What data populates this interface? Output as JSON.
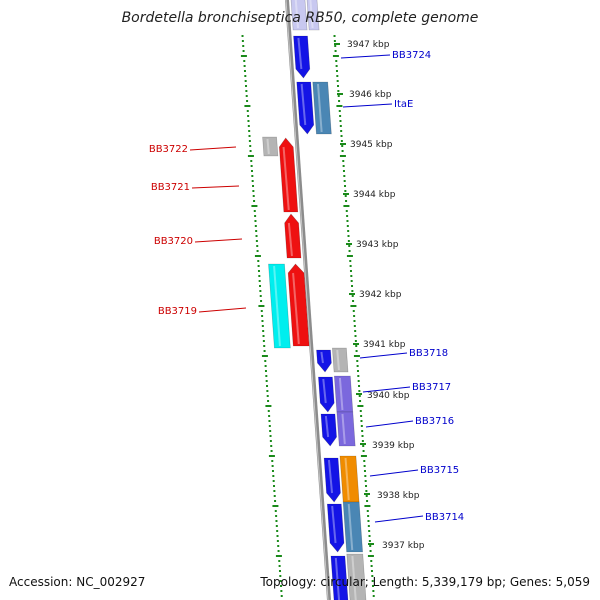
{
  "title": "Bordetella bronchiseptica RB50, complete genome",
  "footer": {
    "accession": "Accession: NC_002927",
    "stats": "Topology: circular; Length: 5,339,179 bp; Genes: 5,059"
  },
  "colors": {
    "backbone": "#8c8c8c",
    "tick": "#1a8a1a",
    "forward_label": "#0000cc",
    "reverse_label": "#cc0000",
    "blue": "#1414e6",
    "red": "#ee1111",
    "cyan": "#00eeee",
    "gray": "#b4b4b4",
    "steel": "#4a86b4",
    "violet": "#7b68dd",
    "orange": "#f08c00",
    "lavender": "#c8c8f0"
  },
  "kbp_labels": [
    {
      "text": "3947 kbp"
    },
    {
      "text": "3946 kbp"
    },
    {
      "text": "3945 kbp"
    },
    {
      "text": "3944 kbp"
    },
    {
      "text": "3943 kbp"
    },
    {
      "text": "3942 kbp"
    },
    {
      "text": "3941 kbp"
    },
    {
      "text": "3940 kbp"
    },
    {
      "text": "3939 kbp"
    },
    {
      "text": "3938 kbp"
    },
    {
      "text": "3937 kbp"
    }
  ],
  "forward_genes": [
    {
      "label": "BB3724"
    },
    {
      "label": "ItaE"
    },
    {
      "label": "BB3718"
    },
    {
      "label": "BB3717"
    },
    {
      "label": "BB3716"
    },
    {
      "label": "BB3715"
    },
    {
      "label": "BB3714"
    }
  ],
  "reverse_genes": [
    {
      "label": "BB3722"
    },
    {
      "label": "BB3721"
    },
    {
      "label": "BB3720"
    },
    {
      "label": "BB3719"
    }
  ]
}
